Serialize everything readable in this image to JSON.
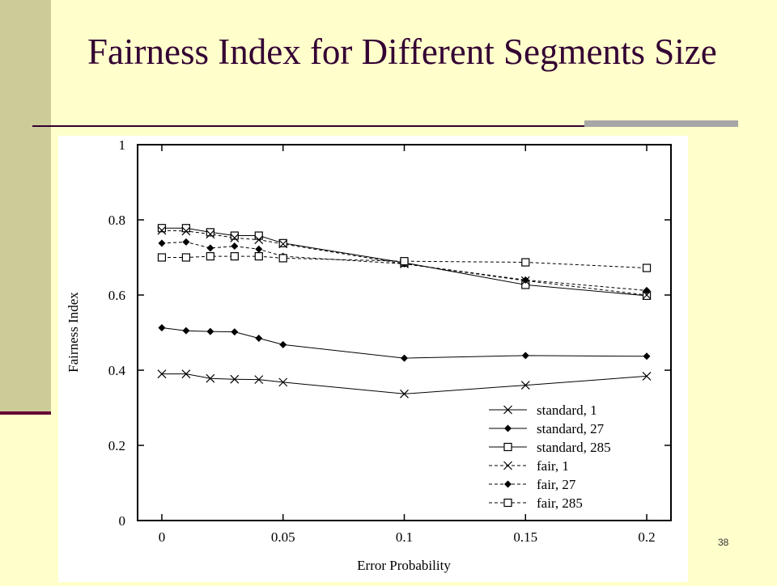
{
  "slide": {
    "title": "Fairness Index for Different Segments Size",
    "page_number": "38"
  },
  "colors": {
    "background": "#ffffcc",
    "left_band": "#cccc99",
    "accent_dark": "#660033",
    "title_text": "#330033"
  },
  "chart_data": {
    "type": "line",
    "title": "",
    "xlabel": "Error Probability",
    "ylabel": "Fairness Index",
    "xlim": [
      -0.01,
      0.21
    ],
    "ylim": [
      0,
      1
    ],
    "x_ticks": [
      0,
      0.05,
      0.1,
      0.15,
      0.2
    ],
    "x_tick_labels": [
      "0",
      "0.05",
      "0.1",
      "0.15",
      "0.2"
    ],
    "y_ticks": [
      0,
      0.2,
      0.4,
      0.6,
      0.8,
      1
    ],
    "y_tick_labels": [
      "0",
      "0.2",
      "0.4",
      "0.6",
      "0.8",
      "1"
    ],
    "grid": false,
    "legend_position": "bottom-right",
    "series": [
      {
        "name": "standard, 1",
        "marker": "cross",
        "dash": "solid",
        "x": [
          0,
          0.01,
          0.02,
          0.03,
          0.04,
          0.05,
          0.1,
          0.15,
          0.2
        ],
        "y": [
          0.39,
          0.39,
          0.378,
          0.376,
          0.375,
          0.368,
          0.337,
          0.36,
          0.384
        ]
      },
      {
        "name": "standard, 27",
        "marker": "diamond",
        "dash": "solid",
        "x": [
          0,
          0.01,
          0.02,
          0.03,
          0.04,
          0.05,
          0.1,
          0.15,
          0.2
        ],
        "y": [
          0.513,
          0.505,
          0.503,
          0.502,
          0.485,
          0.468,
          0.432,
          0.439,
          0.437
        ]
      },
      {
        "name": "standard, 285",
        "marker": "square",
        "dash": "solid",
        "x": [
          0,
          0.01,
          0.02,
          0.03,
          0.04,
          0.05,
          0.1,
          0.15,
          0.2
        ],
        "y": [
          0.778,
          0.778,
          0.767,
          0.758,
          0.758,
          0.738,
          0.686,
          0.627,
          0.598
        ]
      },
      {
        "name": "fair, 1",
        "marker": "cross",
        "dash": "dashed",
        "x": [
          0,
          0.01,
          0.02,
          0.03,
          0.04,
          0.05,
          0.1,
          0.15,
          0.2
        ],
        "y": [
          0.772,
          0.77,
          0.762,
          0.752,
          0.747,
          0.736,
          0.683,
          0.638,
          0.6
        ]
      },
      {
        "name": "fair,  27",
        "marker": "diamond",
        "dash": "dashed",
        "x": [
          0,
          0.01,
          0.02,
          0.03,
          0.04,
          0.05,
          0.1,
          0.15,
          0.2
        ],
        "y": [
          0.738,
          0.741,
          0.725,
          0.73,
          0.722,
          0.703,
          0.683,
          0.64,
          0.612
        ]
      },
      {
        "name": "fair,  285",
        "marker": "square",
        "dash": "dashed",
        "x": [
          0,
          0.01,
          0.02,
          0.03,
          0.04,
          0.05,
          0.1,
          0.15,
          0.2
        ],
        "y": [
          0.7,
          0.7,
          0.703,
          0.703,
          0.703,
          0.698,
          0.69,
          0.687,
          0.672
        ]
      }
    ]
  }
}
